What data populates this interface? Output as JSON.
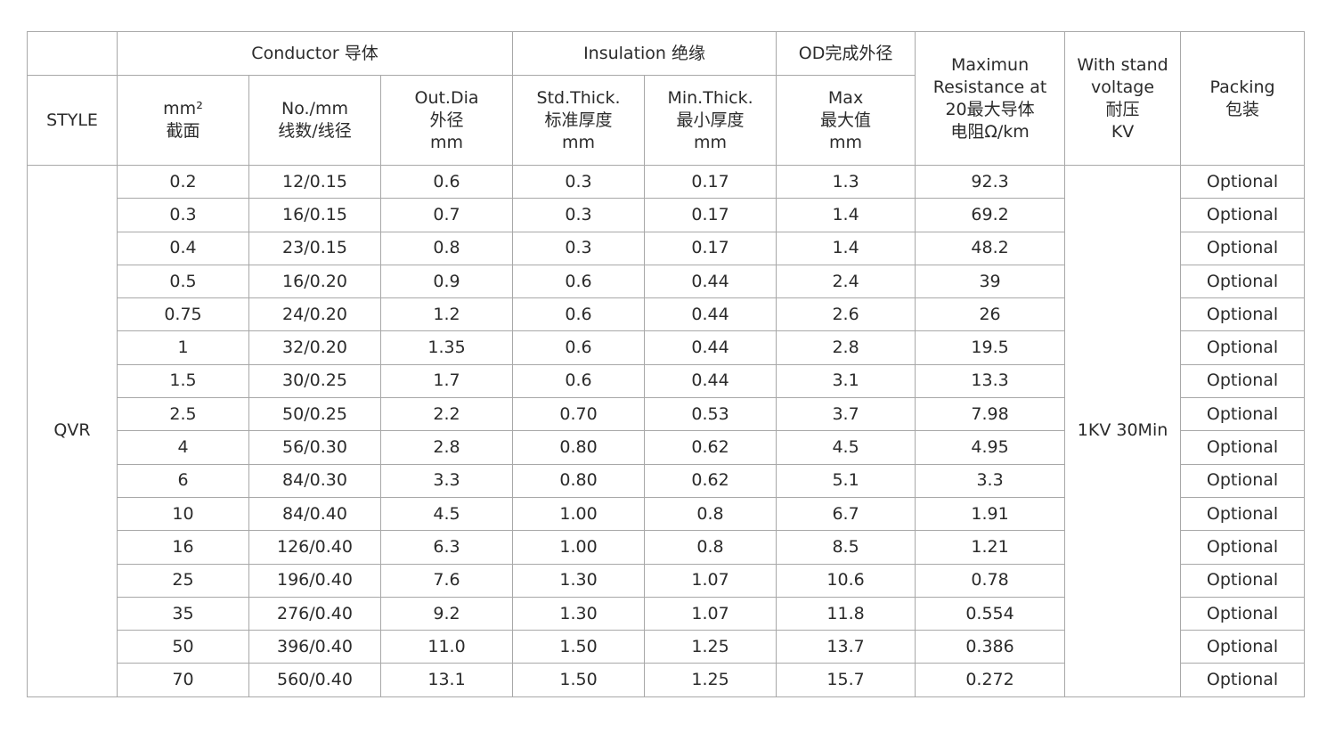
{
  "header": {
    "style": "STYLE",
    "conductor": "Conductor 导体",
    "insulation": "Insulation 绝缘",
    "od": "OD完成外径",
    "resistance": "Maximun\nResistance at\n20最大导体\n电阻Ω/km",
    "voltage": "With stand\nvoltage\n耐压\nKV",
    "packing": "Packing\n包装",
    "sub": [
      "mm²\n截面",
      "No./mm\n线数/线径",
      "Out.Dia\n外径\nmm",
      "Std.Thick.\n标准厚度\nmm",
      "Min.Thick.\n最小厚度\nmm",
      "Max\n最大值\nmm"
    ]
  },
  "style_value": "QVR",
  "voltage_value": "1KV 30Min",
  "rows": [
    [
      "0.2",
      "12/0.15",
      "0.6",
      "0.3",
      "0.17",
      "1.3",
      "92.3",
      "Optional"
    ],
    [
      "0.3",
      "16/0.15",
      "0.7",
      "0.3",
      "0.17",
      "1.4",
      "69.2",
      "Optional"
    ],
    [
      "0.4",
      "23/0.15",
      "0.8",
      "0.3",
      "0.17",
      "1.4",
      "48.2",
      "Optional"
    ],
    [
      "0.5",
      "16/0.20",
      "0.9",
      "0.6",
      "0.44",
      "2.4",
      "39",
      "Optional"
    ],
    [
      "0.75",
      "24/0.20",
      "1.2",
      "0.6",
      "0.44",
      "2.6",
      "26",
      "Optional"
    ],
    [
      "1",
      "32/0.20",
      "1.35",
      "0.6",
      "0.44",
      "2.8",
      "19.5",
      "Optional"
    ],
    [
      "1.5",
      "30/0.25",
      "1.7",
      "0.6",
      "0.44",
      "3.1",
      "13.3",
      "Optional"
    ],
    [
      "2.5",
      "50/0.25",
      "2.2",
      "0.70",
      "0.53",
      "3.7",
      "7.98",
      "Optional"
    ],
    [
      "4",
      "56/0.30",
      "2.8",
      "0.80",
      "0.62",
      "4.5",
      "4.95",
      "Optional"
    ],
    [
      "6",
      "84/0.30",
      "3.3",
      "0.80",
      "0.62",
      "5.1",
      "3.3",
      "Optional"
    ],
    [
      "10",
      "84/0.40",
      "4.5",
      "1.00",
      "0.8",
      "6.7",
      "1.91",
      "Optional"
    ],
    [
      "16",
      "126/0.40",
      "6.3",
      "1.00",
      "0.8",
      "8.5",
      "1.21",
      "Optional"
    ],
    [
      "25",
      "196/0.40",
      "7.6",
      "1.30",
      "1.07",
      "10.6",
      "0.78",
      "Optional"
    ],
    [
      "35",
      "276/0.40",
      "9.2",
      "1.30",
      "1.07",
      "11.8",
      "0.554",
      "Optional"
    ],
    [
      "50",
      "396/0.40",
      "11.0",
      "1.50",
      "1.25",
      "13.7",
      "0.386",
      "Optional"
    ],
    [
      "70",
      "560/0.40",
      "13.1",
      "1.50",
      "1.25",
      "15.7",
      "0.272",
      "Optional"
    ]
  ]
}
